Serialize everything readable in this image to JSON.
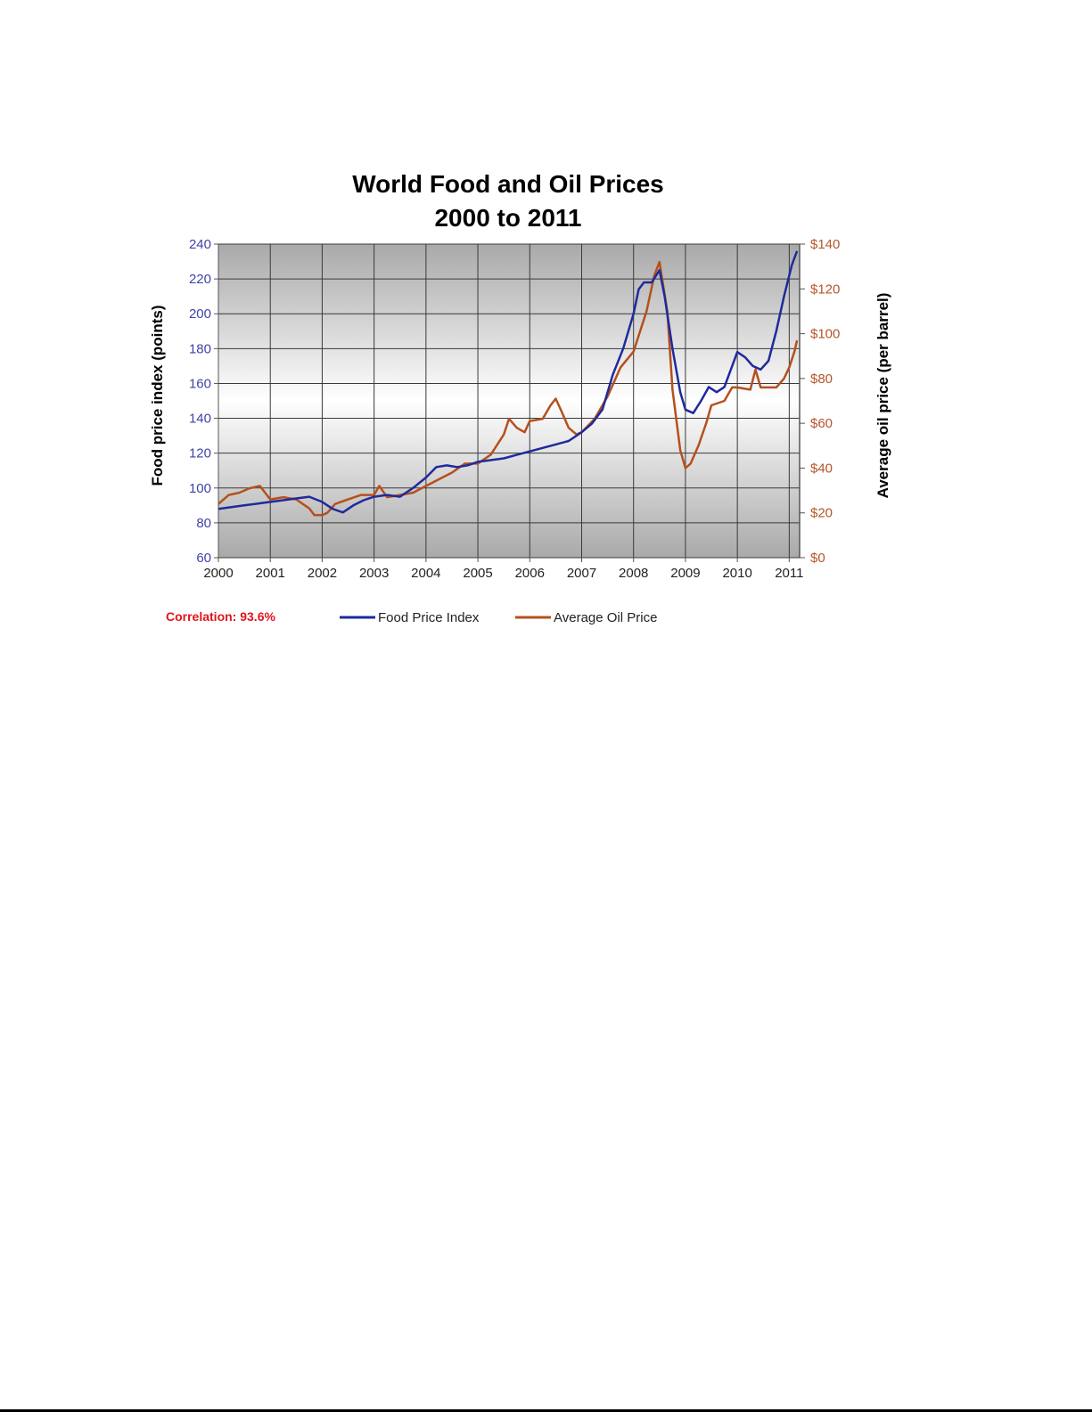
{
  "chart_data": {
    "type": "line",
    "title": [
      "World Food and Oil Prices",
      "2000 to 2011"
    ],
    "ylabel_left": "Food price index (points)",
    "ylabel_right": "Average oil price (per barrel)",
    "xlabel": "",
    "x_ticks": [
      "2000",
      "2001",
      "2002",
      "2003",
      "2004",
      "2005",
      "2006",
      "2007",
      "2008",
      "2009",
      "2010",
      "2011"
    ],
    "xlim": [
      2000,
      2011.2
    ],
    "ylim_left": [
      60,
      240
    ],
    "ylim_right": [
      0,
      140
    ],
    "yticks_left": [
      "60",
      "80",
      "100",
      "120",
      "140",
      "160",
      "180",
      "200",
      "220",
      "240"
    ],
    "yticks_right": [
      "$0",
      "$20",
      "$40",
      "$60",
      "$80",
      "$100",
      "$120",
      "$140"
    ],
    "grid": true,
    "legend_position": "bottom",
    "annotation": "Correlation: 93.6%",
    "colors": {
      "food": "#1f2a9c",
      "oil": "#b5501e",
      "annotation": "#e0141e"
    },
    "series": [
      {
        "name": "Food Price Index",
        "axis": "left",
        "points": [
          [
            2000.0,
            88
          ],
          [
            2000.25,
            89
          ],
          [
            2000.5,
            90
          ],
          [
            2000.75,
            91
          ],
          [
            2001.0,
            92
          ],
          [
            2001.25,
            93
          ],
          [
            2001.5,
            94
          ],
          [
            2001.75,
            95
          ],
          [
            2002.0,
            92
          ],
          [
            2002.2,
            88
          ],
          [
            2002.4,
            86
          ],
          [
            2002.6,
            90
          ],
          [
            2002.8,
            93
          ],
          [
            2003.0,
            95
          ],
          [
            2003.25,
            96
          ],
          [
            2003.5,
            95
          ],
          [
            2003.75,
            100
          ],
          [
            2004.0,
            106
          ],
          [
            2004.2,
            112
          ],
          [
            2004.4,
            113
          ],
          [
            2004.6,
            112
          ],
          [
            2004.8,
            113
          ],
          [
            2005.0,
            115
          ],
          [
            2005.25,
            116
          ],
          [
            2005.5,
            117
          ],
          [
            2005.75,
            119
          ],
          [
            2006.0,
            121
          ],
          [
            2006.25,
            123
          ],
          [
            2006.5,
            125
          ],
          [
            2006.75,
            127
          ],
          [
            2007.0,
            132
          ],
          [
            2007.2,
            137
          ],
          [
            2007.4,
            145
          ],
          [
            2007.6,
            165
          ],
          [
            2007.8,
            180
          ],
          [
            2008.0,
            200
          ],
          [
            2008.1,
            214
          ],
          [
            2008.2,
            218
          ],
          [
            2008.35,
            218
          ],
          [
            2008.5,
            225
          ],
          [
            2008.6,
            210
          ],
          [
            2008.75,
            180
          ],
          [
            2008.9,
            155
          ],
          [
            2009.0,
            145
          ],
          [
            2009.15,
            143
          ],
          [
            2009.3,
            150
          ],
          [
            2009.45,
            158
          ],
          [
            2009.6,
            155
          ],
          [
            2009.75,
            158
          ],
          [
            2009.9,
            170
          ],
          [
            2010.0,
            178
          ],
          [
            2010.15,
            175
          ],
          [
            2010.3,
            170
          ],
          [
            2010.45,
            168
          ],
          [
            2010.6,
            173
          ],
          [
            2010.75,
            190
          ],
          [
            2010.9,
            210
          ],
          [
            2011.05,
            228
          ],
          [
            2011.15,
            236
          ]
        ]
      },
      {
        "name": "Average Oil Price",
        "axis": "right",
        "points": [
          [
            2000.0,
            24
          ],
          [
            2000.2,
            28
          ],
          [
            2000.4,
            29
          ],
          [
            2000.6,
            31
          ],
          [
            2000.8,
            32
          ],
          [
            2001.0,
            26
          ],
          [
            2001.25,
            27
          ],
          [
            2001.5,
            26
          ],
          [
            2001.75,
            22
          ],
          [
            2001.85,
            19
          ],
          [
            2002.0,
            19
          ],
          [
            2002.1,
            20
          ],
          [
            2002.25,
            24
          ],
          [
            2002.5,
            26
          ],
          [
            2002.75,
            28
          ],
          [
            2003.0,
            28
          ],
          [
            2003.1,
            32
          ],
          [
            2003.25,
            27
          ],
          [
            2003.5,
            28
          ],
          [
            2003.75,
            29
          ],
          [
            2004.0,
            32
          ],
          [
            2004.25,
            35
          ],
          [
            2004.5,
            38
          ],
          [
            2004.75,
            42
          ],
          [
            2005.0,
            42
          ],
          [
            2005.25,
            46
          ],
          [
            2005.5,
            55
          ],
          [
            2005.6,
            62
          ],
          [
            2005.75,
            58
          ],
          [
            2005.9,
            56
          ],
          [
            2006.0,
            61
          ],
          [
            2006.25,
            62
          ],
          [
            2006.4,
            68
          ],
          [
            2006.5,
            71
          ],
          [
            2006.6,
            66
          ],
          [
            2006.75,
            58
          ],
          [
            2006.9,
            55
          ],
          [
            2007.0,
            56
          ],
          [
            2007.25,
            62
          ],
          [
            2007.5,
            72
          ],
          [
            2007.75,
            85
          ],
          [
            2008.0,
            92
          ],
          [
            2008.25,
            110
          ],
          [
            2008.4,
            126
          ],
          [
            2008.5,
            132
          ],
          [
            2008.65,
            110
          ],
          [
            2008.75,
            75
          ],
          [
            2008.9,
            48
          ],
          [
            2009.0,
            40
          ],
          [
            2009.1,
            42
          ],
          [
            2009.25,
            50
          ],
          [
            2009.4,
            60
          ],
          [
            2009.5,
            68
          ],
          [
            2009.75,
            70
          ],
          [
            2009.9,
            76
          ],
          [
            2010.0,
            76
          ],
          [
            2010.25,
            75
          ],
          [
            2010.35,
            84
          ],
          [
            2010.45,
            76
          ],
          [
            2010.75,
            76
          ],
          [
            2010.9,
            80
          ],
          [
            2011.0,
            85
          ],
          [
            2011.1,
            92
          ],
          [
            2011.15,
            97
          ]
        ]
      }
    ]
  }
}
